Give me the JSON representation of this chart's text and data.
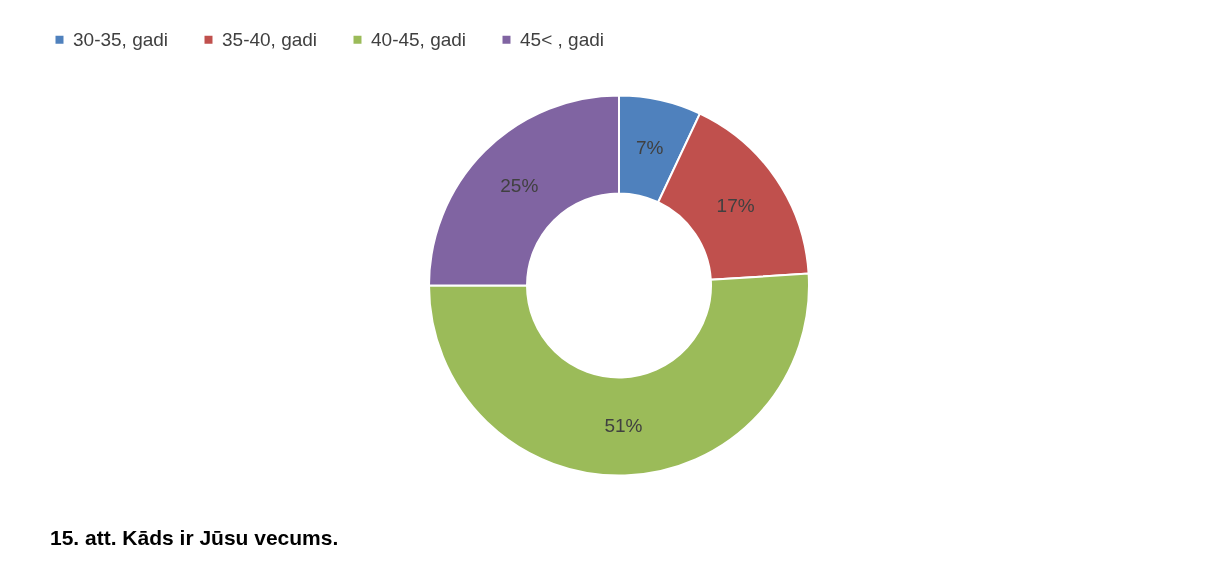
{
  "chart_data": {
    "type": "donut",
    "title": "15. att. Kāds ir Jūsu vecums.",
    "categories": [
      "30-35, gadi",
      "35-40, gadi",
      "40-45, gadi",
      "45< , gadi"
    ],
    "values": [
      7,
      17,
      51,
      25
    ],
    "colors": [
      "#4f81bd",
      "#c0504d",
      "#9bbb59",
      "#8064a2"
    ],
    "value_labels": [
      "7%",
      "17%",
      "51%",
      "25%"
    ],
    "legend": "top"
  }
}
